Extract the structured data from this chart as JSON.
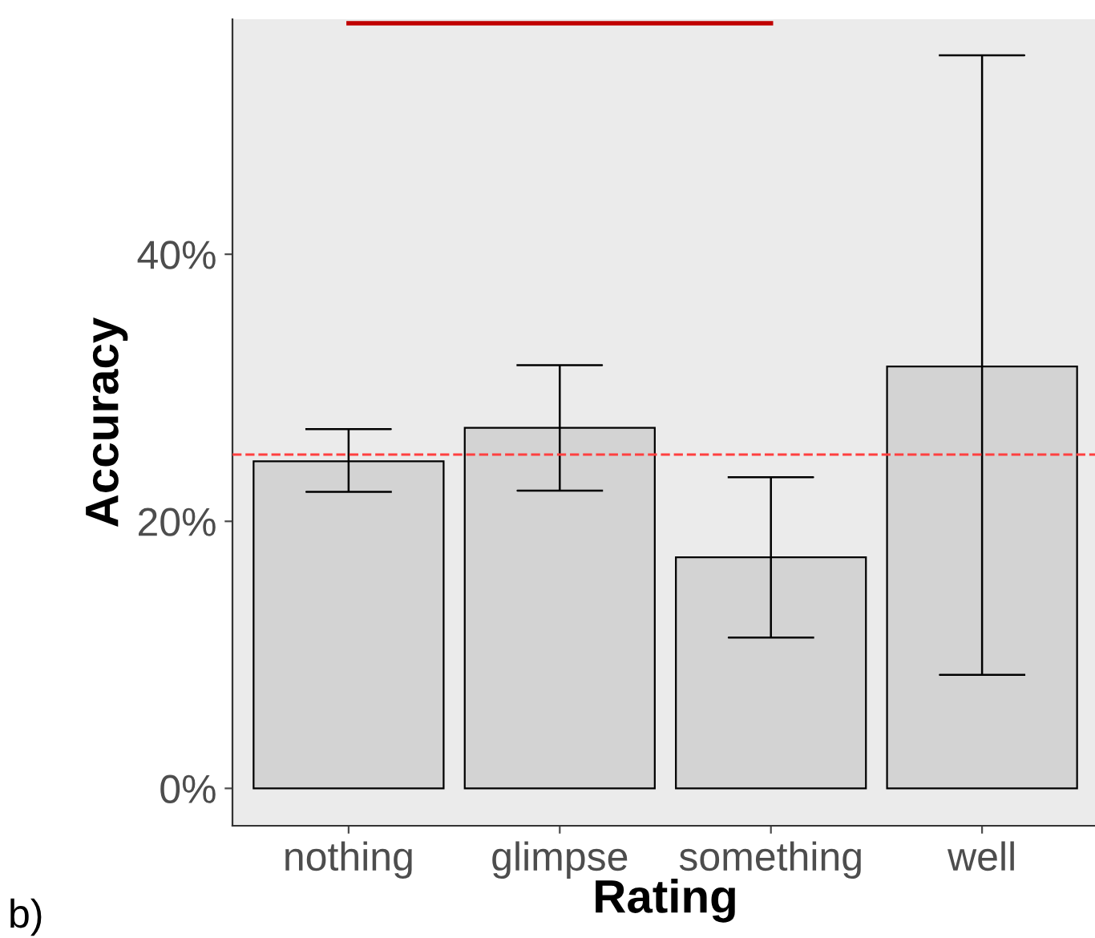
{
  "chart_data": {
    "type": "bar",
    "xlabel": "Rating",
    "ylabel": "Accuracy",
    "categories": [
      "nothing",
      "glimpse",
      "something",
      "well"
    ],
    "series": [
      {
        "type": "bar",
        "color": "#d3d3d3",
        "values": [
          24.5,
          27.0,
          17.3,
          31.6
        ],
        "errors": [
          [
            22.2,
            26.9
          ],
          [
            22.3,
            31.7
          ],
          [
            11.3,
            23.3
          ],
          [
            8.5,
            54.9
          ]
        ]
      },
      {
        "type": "line",
        "color": "#c00000",
        "values": [
          57.3,
          57.3,
          57.3,
          null
        ]
      }
    ],
    "ylim": [
      -2.8,
      57.6
    ],
    "yticks": [
      {
        "value": 0,
        "label": "0%"
      },
      {
        "value": 20,
        "label": "20%"
      },
      {
        "value": 40,
        "label": "40%"
      }
    ],
    "ref_lines": [
      {
        "axis": "y",
        "value": 25,
        "color": "#ff4040",
        "line_style": "dashed"
      }
    ],
    "annotations": [
      "b)"
    ],
    "grid": false
  }
}
